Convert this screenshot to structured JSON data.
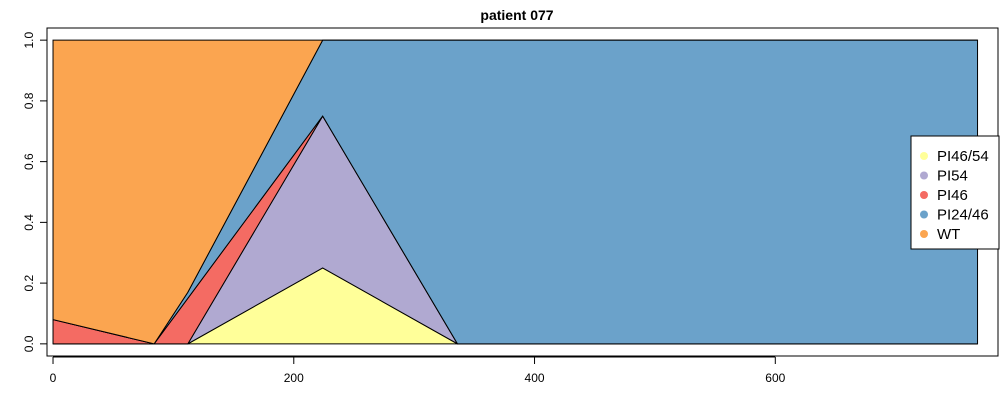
{
  "chart_data": {
    "type": "area",
    "title": "patient 077",
    "xlabel": "",
    "ylabel": "",
    "xlim": [
      -5,
      785
    ],
    "ylim": [
      -0.04,
      1.04
    ],
    "x_ticks": [
      0,
      200,
      400,
      600
    ],
    "y_ticks": [
      0.0,
      0.2,
      0.4,
      0.6,
      0.8,
      1.0
    ],
    "x_tick_labels": [
      "0",
      "200",
      "400",
      "600"
    ],
    "y_tick_labels": [
      "0.0",
      "0.2",
      "0.4",
      "0.6",
      "0.8",
      "1.0"
    ],
    "stack_order": "bottom-to-top: PI46/54, PI54, PI46, PI24/46, WT",
    "series": [
      {
        "name": "PI46/54",
        "color": "#FFFF99",
        "points": [
          [
            0,
            0
          ],
          [
            84,
            0
          ],
          [
            112,
            0
          ],
          [
            224,
            0.25
          ],
          [
            336,
            0
          ],
          [
            768,
            0
          ]
        ]
      },
      {
        "name": "PI54",
        "color": "#B0A9D1",
        "points": [
          [
            0,
            0
          ],
          [
            84,
            0
          ],
          [
            112,
            0
          ],
          [
            224,
            0.5
          ],
          [
            336,
            0
          ],
          [
            768,
            0
          ]
        ]
      },
      {
        "name": "PI46",
        "color": "#F46B63",
        "points": [
          [
            0,
            0.08
          ],
          [
            84,
            0
          ],
          [
            112,
            0.15
          ],
          [
            224,
            0.0
          ],
          [
            336,
            0
          ],
          [
            768,
            0
          ]
        ]
      },
      {
        "name": "PI24/46",
        "color": "#6BA2CA",
        "points": [
          [
            0,
            0
          ],
          [
            84,
            0
          ],
          [
            112,
            0.02
          ],
          [
            224,
            0.25
          ],
          [
            336,
            1.0
          ],
          [
            768,
            1.0
          ]
        ]
      },
      {
        "name": "WT",
        "color": "#FBA550",
        "points": [
          [
            0,
            0.92
          ],
          [
            84,
            1.0
          ],
          [
            112,
            0.83
          ],
          [
            224,
            0.0
          ],
          [
            336,
            0
          ],
          [
            768,
            0
          ]
        ]
      }
    ],
    "legend": {
      "placement": "right",
      "entries": [
        {
          "label": "PI46/54",
          "color": "#FFFF99"
        },
        {
          "label": "PI54",
          "color": "#B0A9D1"
        },
        {
          "label": "PI46",
          "color": "#F46B63"
        },
        {
          "label": "PI24/46",
          "color": "#6BA2CA"
        },
        {
          "label": "WT",
          "color": "#FBA550"
        }
      ]
    },
    "grid": false
  }
}
